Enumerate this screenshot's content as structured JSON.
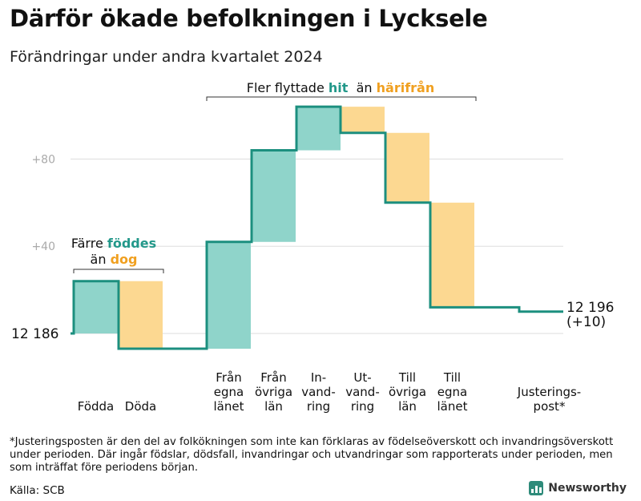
{
  "title": "Därför ökade befolkningen i Lycksele",
  "subtitle": "Förändringar under andra kvartalet 2024",
  "chart_data": {
    "type": "waterfall",
    "start_label": "12  186",
    "end_label": "12 196",
    "end_change": "(+10)",
    "y_start_offset": 0,
    "y_ticks": [
      {
        "value": 40,
        "label": "+40"
      },
      {
        "value": 80,
        "label": "+80"
      }
    ],
    "ylim": [
      -8,
      105
    ],
    "steps": [
      {
        "label": [
          "",
          "",
          "Födda"
        ],
        "delta": 24,
        "kind": "inc"
      },
      {
        "label": [
          "",
          "",
          "Döda"
        ],
        "delta": -31,
        "kind": "dec"
      },
      {
        "label": [
          "Från",
          "egna",
          "länet"
        ],
        "delta": 49,
        "kind": "inc"
      },
      {
        "label": [
          "Från",
          "övriga",
          "län"
        ],
        "delta": 42,
        "kind": "inc"
      },
      {
        "label": [
          "In-",
          "vand-",
          "ring"
        ],
        "delta": 20,
        "kind": "inc"
      },
      {
        "label": [
          "Ut-",
          "vand-",
          "ring"
        ],
        "delta": -12,
        "kind": "dec"
      },
      {
        "label": [
          "Till",
          "övriga",
          "län"
        ],
        "delta": -32,
        "kind": "dec"
      },
      {
        "label": [
          "Till",
          "egna",
          "länet"
        ],
        "delta": -48,
        "kind": "dec"
      },
      {
        "label": [
          "",
          "Justerings-",
          "post*"
        ],
        "delta": -2,
        "kind": "adj"
      }
    ],
    "annotations": [
      {
        "parts": [
          {
            "text": "Fler flyttade ",
            "color": "#111111"
          },
          {
            "text": "hit",
            "color": "#23988a",
            "bold": true
          },
          {
            "text": "  än ",
            "color": "#111111"
          },
          {
            "text": "härifrån",
            "color": "#f0a020",
            "bold": true
          }
        ]
      },
      {
        "line1": [
          {
            "text": "Färre ",
            "color": "#111111"
          },
          {
            "text": "föddes",
            "color": "#23988a",
            "bold": true
          }
        ],
        "line2": [
          {
            "text": "än ",
            "color": "#111111"
          },
          {
            "text": "dog",
            "color": "#f0a020",
            "bold": true
          }
        ]
      }
    ],
    "colors": {
      "increase": "#8fd4ca",
      "decrease": "#fcd891",
      "line": "#1c8f7f",
      "grid": "#dddddd",
      "tick": "#aaaaaa"
    }
  },
  "footnote": "*Justeringsposten är den del av folkökningen som inte kan förklaras av födelseöverskott och invandringsöverskott under perioden. Där ingår födslar, dödsfall, invandringar och utvandringar som rapporterats under perioden, men som inträffat före periodens början.",
  "source": "Källa: SCB",
  "brand": "Newsworthy"
}
